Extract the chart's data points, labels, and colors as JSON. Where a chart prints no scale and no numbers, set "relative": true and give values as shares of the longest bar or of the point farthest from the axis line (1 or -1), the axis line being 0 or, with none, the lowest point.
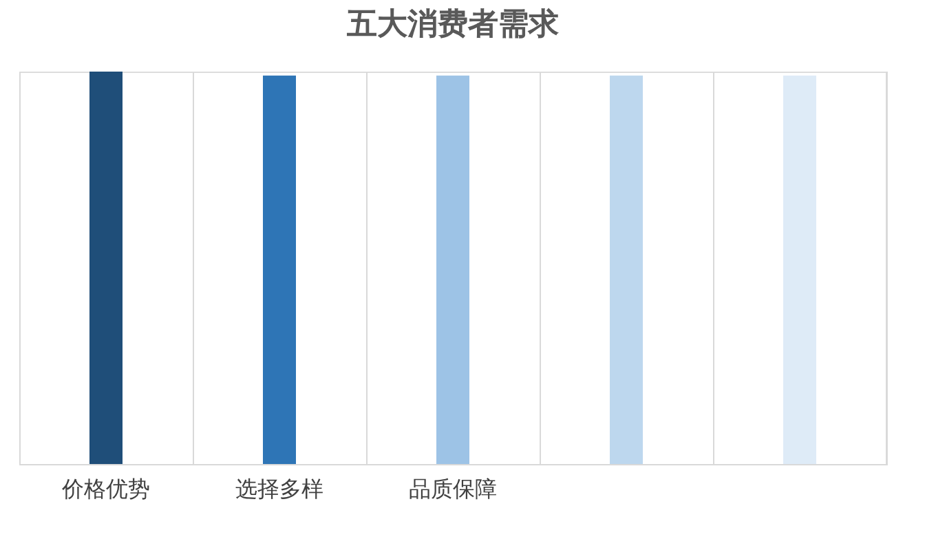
{
  "chart_data": {
    "type": "bar",
    "title": "五大消费者需求",
    "relative": true,
    "categories": [
      "价格优势",
      "选择多样",
      "品质保障",
      null,
      null
    ],
    "values": [
      1,
      0.99,
      0.99,
      0.99,
      0.99
    ],
    "colors": [
      "#1f4e79",
      "#2e75b6",
      "#9dc3e6",
      "#bdd7ee",
      "#deebf7"
    ],
    "grid": "x",
    "legend": false
  }
}
